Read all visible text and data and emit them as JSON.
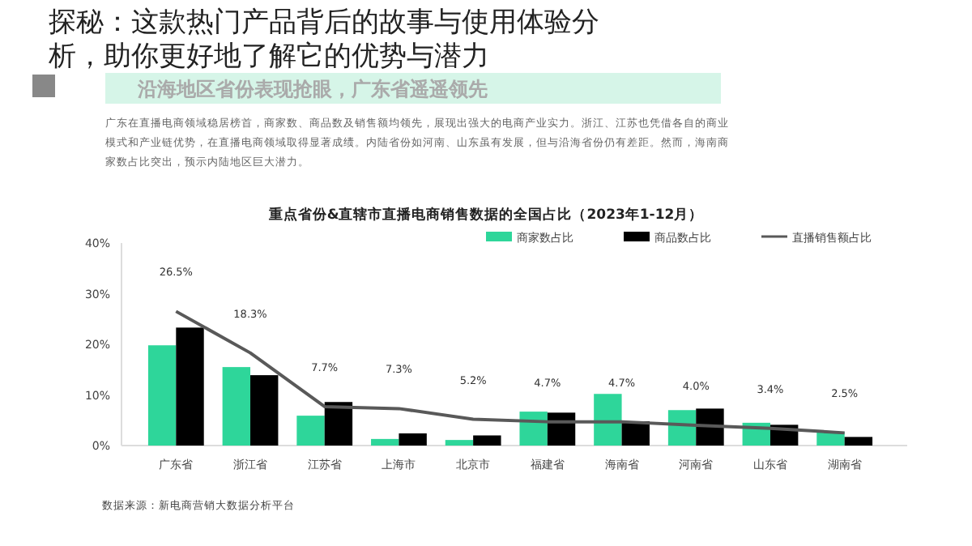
{
  "chart_data": {
    "type": "bar",
    "title": "重点省份&直辖市直播电商销售数据的全国占比（2023年1-12月）",
    "annotations": [
      "探秘：这款热门产品背后的故事与使用体验分析，助你更好地了解它的优势与潜力",
      "沿海地区省份表现抢眼，广东省遥遥领先",
      "广东在直播电商领域稳居榜首，商家数、商品数及销售额均领先，展现出强大的电商产业实力。浙江、江苏也凭借各自的商业",
      "模式和产业链优势，在直播电商领域取得显著成绩。内陆省份如河南、山东虽有发展，但与沿海省份仍有差距。然而，海南商",
      "家数占比突出，预示内陆地区巨大潜力。",
      "数据来源：新电商营销大数据分析平台"
    ],
    "categories": [
      "广东省",
      "浙江省",
      "江苏省",
      "上海市",
      "北京市",
      "福建省",
      "海南省",
      "河南省",
      "山东省",
      "湖南省"
    ],
    "series": [
      {
        "name": "商家数占比",
        "color": "#2ed69a",
        "values": [
          19.8,
          15.5,
          5.9,
          1.3,
          1.1,
          6.7,
          10.2,
          7.0,
          4.5,
          2.7
        ]
      },
      {
        "name": "商品数占比",
        "color": "#000000",
        "values": [
          23.3,
          13.9,
          8.6,
          2.4,
          2.0,
          6.5,
          4.8,
          7.3,
          4.1,
          1.7
        ]
      },
      {
        "name": "直播销售额占比",
        "type": "line",
        "color": "#595959",
        "values": [
          26.5,
          18.3,
          7.7,
          7.3,
          5.2,
          4.7,
          4.7,
          4.0,
          3.4,
          2.5
        ],
        "value_labels": [
          "26.5%",
          "18.3%",
          "7.7%",
          "7.3%",
          "5.2%",
          "4.7%",
          "4.7%",
          "4.0%",
          "3.4%",
          "2.5%"
        ]
      }
    ],
    "ylim": [
      0,
      40
    ],
    "yticks": [
      {
        "value": 0,
        "label": "0%"
      },
      {
        "value": 10,
        "label": "10%"
      },
      {
        "value": 20,
        "label": "20%"
      },
      {
        "value": 30,
        "label": "30%"
      },
      {
        "value": 40,
        "label": "40%"
      }
    ],
    "grid": false,
    "legend": "top right",
    "marker": "none"
  }
}
